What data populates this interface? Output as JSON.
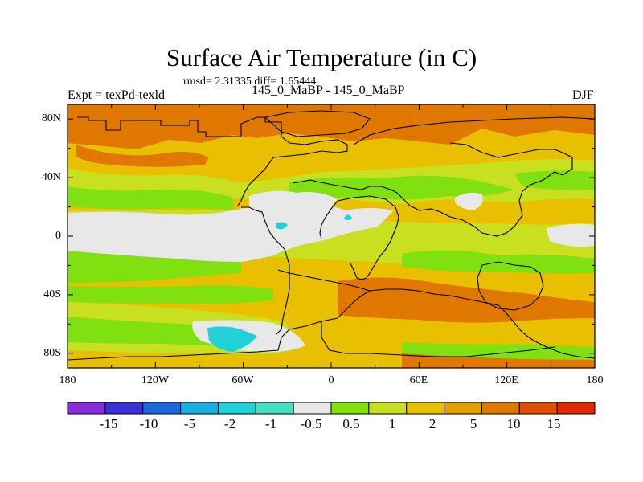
{
  "header": {
    "title": "Surface Air Temperature (in C)",
    "stats": "rmsd= 2.31335 diff= 1.65444",
    "expt": "Expt = texPd-texld",
    "runs": "145_0_MaBP - 145_0_MaBP",
    "season": "DJF"
  },
  "axes": {
    "y_ticks": [
      "80N",
      "40N",
      "0",
      "40S",
      "80S"
    ],
    "x_ticks": [
      "180",
      "120W",
      "60W",
      "0",
      "60E",
      "120E",
      "180"
    ]
  },
  "colorbar": {
    "colors": [
      "#8a2be2",
      "#3b2fd8",
      "#1a68e0",
      "#18b0e0",
      "#22d0d8",
      "#44e0c4",
      "#e8e8e8",
      "#80e010",
      "#c8e020",
      "#e8c000",
      "#e0a000",
      "#e07800",
      "#e05000",
      "#e02a00"
    ],
    "labels": [
      "-15",
      "-10",
      "-5",
      "-2",
      "-1",
      "-0.5",
      "0.5",
      "1",
      "2",
      "5",
      "10",
      "15"
    ]
  },
  "palette": {
    "ocean_light": "#c8e020",
    "ocean_green": "#80e010",
    "grey": "#e8e8e8",
    "warm": "#e0a000",
    "hot": "#e07800",
    "cyan": "#22d0d8"
  }
}
